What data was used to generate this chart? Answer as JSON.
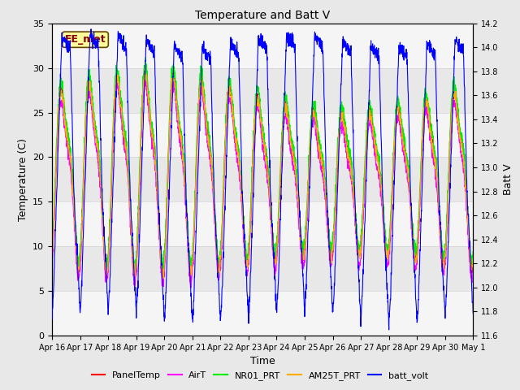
{
  "title": "Temperature and Batt V",
  "xlabel": "Time",
  "ylabel_left": "Temperature (C)",
  "ylabel_right": "Batt V",
  "ylim_left": [
    0,
    35
  ],
  "ylim_right": [
    11.6,
    14.2
  ],
  "yticks_left": [
    0,
    5,
    10,
    15,
    20,
    25,
    30,
    35
  ],
  "yticks_right": [
    11.6,
    11.8,
    12.0,
    12.2,
    12.4,
    12.6,
    12.8,
    13.0,
    13.2,
    13.4,
    13.6,
    13.8,
    14.0,
    14.2
  ],
  "xtick_labels": [
    "Apr 16",
    "Apr 17",
    "Apr 18",
    "Apr 19",
    "Apr 20",
    "Apr 21",
    "Apr 22",
    "Apr 23",
    "Apr 24",
    "Apr 25",
    "Apr 26",
    "Apr 27",
    "Apr 28",
    "Apr 29",
    "Apr 30",
    "May 1"
  ],
  "station_label": "EE_met",
  "series_colors": {
    "PanelTemp": "#FF0000",
    "AirT": "#FF00FF",
    "NR01_PRT": "#00EE00",
    "AM25T_PRT": "#FFAA00",
    "batt_volt": "#0000FF"
  },
  "background_color": "#E8E8E8",
  "band_color": "#F5F5F5",
  "n_days": 15,
  "pts_per_day": 144
}
